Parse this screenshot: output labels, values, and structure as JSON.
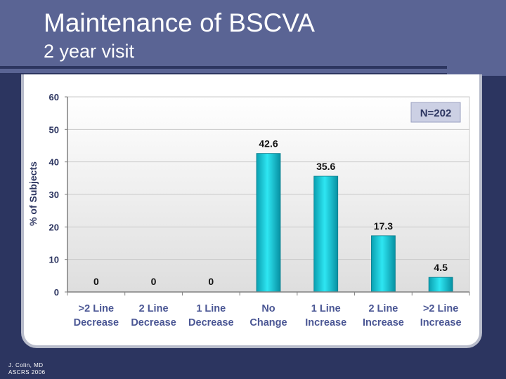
{
  "slide": {
    "title": "Maintenance of BSCVA",
    "subtitle": "2 year visit",
    "credit_line1": "J. Colin, MD",
    "credit_line2": "ASCRS 2006"
  },
  "chart_data": {
    "type": "bar",
    "title": "",
    "xlabel": "",
    "ylabel": "% of Subjects",
    "ylim": [
      0,
      60
    ],
    "yticks": [
      0,
      10,
      20,
      30,
      40,
      50,
      60
    ],
    "annotation": "N=202",
    "categories": [
      ">2 Line Decrease",
      "2 Line Decrease",
      "1 Line Decrease",
      "No Change",
      "1 Line Increase",
      "2 Line Increase",
      ">2 Line Increase"
    ],
    "category_lines": [
      [
        ">2 Line",
        "Decrease"
      ],
      [
        "2 Line",
        "Decrease"
      ],
      [
        "1 Line",
        "Decrease"
      ],
      [
        "No",
        "Change"
      ],
      [
        "1 Line",
        "Increase"
      ],
      [
        "2 Line",
        "Increase"
      ],
      [
        ">2 Line",
        "Increase"
      ]
    ],
    "values": [
      0,
      0,
      0,
      42.6,
      35.6,
      17.3,
      4.5
    ],
    "value_labels": [
      "0",
      "0",
      "0",
      "42.6",
      "35.6",
      "17.3",
      "4.5"
    ],
    "bar_color": "#12c8d8",
    "grid": true,
    "legend": false
  }
}
